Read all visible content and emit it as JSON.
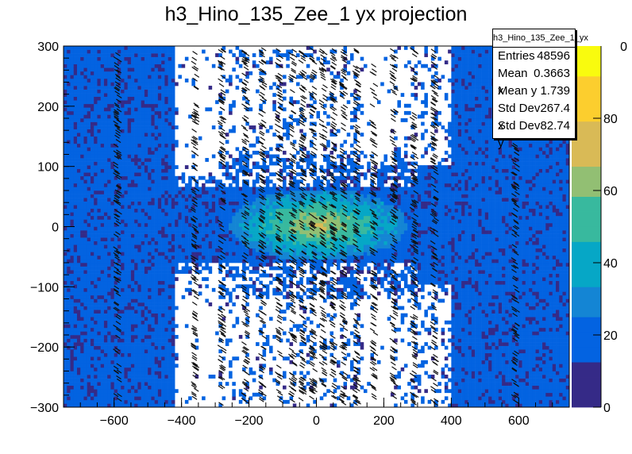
{
  "chart_data": {
    "type": "heatmap",
    "title": "h3_Hino_135_Zee_1 yx projection",
    "xlabel": "",
    "ylabel": "",
    "xlim": [
      -750,
      750
    ],
    "ylim": [
      -300,
      300
    ],
    "zlim": [
      0,
      100
    ],
    "x_ticks": [
      -600,
      -400,
      -200,
      0,
      200,
      400,
      600
    ],
    "x_tick_labels": [
      "−600",
      "−400",
      "−200",
      "0",
      "200",
      "400",
      "600"
    ],
    "y_ticks": [
      -300,
      -200,
      -100,
      0,
      100,
      200,
      300
    ],
    "y_tick_labels": [
      "−300",
      "−200",
      "−100",
      "0",
      "100",
      "200",
      "300"
    ],
    "z_ticks": [
      0,
      20,
      40,
      60,
      80
    ],
    "z_tick_labels": [
      "0",
      "20",
      "40",
      "60",
      "80"
    ],
    "z_partial_label": "0",
    "palette": [
      "#352a87",
      "#0363e1",
      "#1485d4",
      "#06a7c6",
      "#38b99e",
      "#92bf73",
      "#d9ba56",
      "#fcce2e",
      "#f9fb0e"
    ],
    "column_centers": [
      -590,
      -360,
      -280,
      -210,
      -160,
      -110,
      -70,
      -40,
      -10,
      20,
      50,
      80,
      120,
      170,
      230,
      290,
      350,
      590
    ],
    "x_gap_ranges": [
      [
        -420,
        -360
      ],
      [
        -360,
        -290
      ],
      [
        0,
        20
      ],
      [
        140,
        230
      ],
      [
        300,
        400
      ]
    ]
  },
  "stats": {
    "title": "h3_Hino_135_Zee_1_yx",
    "rows": [
      {
        "label": "Entries",
        "value": "48596"
      },
      {
        "label": "Mean x",
        "value": "0.3663"
      },
      {
        "label": "Mean y",
        "value": "1.739"
      },
      {
        "label": "Std Dev x",
        "value": "267.4"
      },
      {
        "label": "Std Dev y",
        "value": "82.74"
      }
    ]
  }
}
